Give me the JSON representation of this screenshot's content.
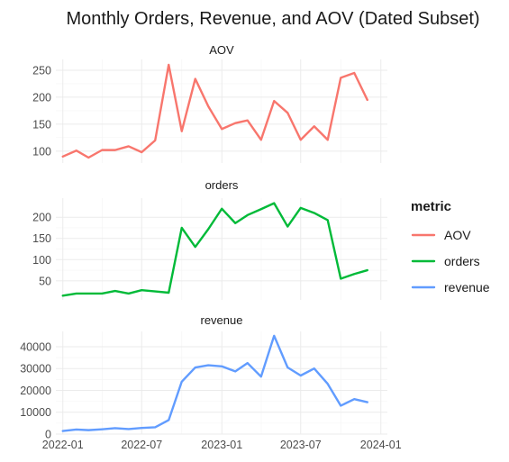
{
  "chart_data": {
    "type": "line",
    "title": "Monthly Orders, Revenue, and AOV (Dated Subset)",
    "xlabel": "",
    "ylabel": "",
    "x": [
      "2022-01",
      "2022-02",
      "2022-03",
      "2022-04",
      "2022-05",
      "2022-06",
      "2022-07",
      "2022-08",
      "2022-09",
      "2022-10",
      "2022-11",
      "2022-12",
      "2023-01",
      "2023-02",
      "2023-03",
      "2023-04",
      "2023-05",
      "2023-06",
      "2023-07",
      "2023-08",
      "2023-09",
      "2023-10",
      "2023-11",
      "2023-12"
    ],
    "x_ticks": [
      "2022-01",
      "2022-07",
      "2023-01",
      "2023-07",
      "2024-01"
    ],
    "xlim": [
      "2021-12-16",
      "2024-01-16"
    ],
    "grid": true,
    "legend": {
      "title": "metric",
      "position": "right"
    },
    "panels": [
      {
        "name": "AOV",
        "color": "#F8766D",
        "ylim": [
          78,
          270
        ],
        "y_ticks": [
          100,
          150,
          200,
          250
        ],
        "values": [
          90,
          101,
          88,
          102,
          102,
          109,
          98,
          120,
          260,
          137,
          234,
          183,
          141,
          152,
          157,
          121,
          193,
          171,
          121,
          146,
          121,
          236,
          245,
          195
        ]
      },
      {
        "name": "orders",
        "color": "#00BA38",
        "ylim": [
          5,
          245
        ],
        "y_ticks": [
          50,
          100,
          150,
          200
        ],
        "values": [
          15,
          20,
          20,
          20,
          26,
          20,
          28,
          25,
          22,
          175,
          130,
          172,
          220,
          186,
          205,
          219,
          233,
          178,
          222,
          210,
          193,
          55,
          66,
          75
        ]
      },
      {
        "name": "revenue",
        "color": "#619CFF",
        "ylim": [
          0,
          47000
        ],
        "y_ticks": [
          0,
          10000,
          20000,
          30000,
          40000
        ],
        "values": [
          1400,
          2100,
          1800,
          2200,
          2700,
          2300,
          2800,
          3100,
          6400,
          24000,
          30500,
          31500,
          31000,
          28700,
          32500,
          26300,
          45000,
          30500,
          26800,
          30000,
          23000,
          13000,
          16000,
          14600
        ]
      }
    ]
  }
}
